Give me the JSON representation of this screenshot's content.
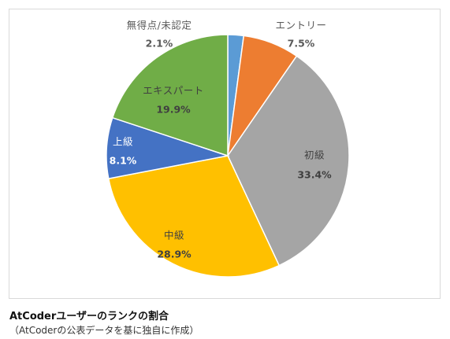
{
  "caption": {
    "title": "AtCoderユーザーのランクの割合",
    "note": "（AtCoderの公表データを基に独自に作成）"
  },
  "chart_data": {
    "type": "pie",
    "title": "",
    "categories": [
      "無得点/未認定",
      "エントリー",
      "初級",
      "中級",
      "上級",
      "エキスパート"
    ],
    "values": [
      2.1,
      7.5,
      33.4,
      28.9,
      8.1,
      19.9
    ],
    "value_labels": [
      "2.1%",
      "7.5%",
      "33.4%",
      "28.9%",
      "8.1%",
      "19.9%"
    ],
    "colors": [
      "#5B9BD5",
      "#ED7D31",
      "#A5A5A5",
      "#FFC000",
      "#4472C4",
      "#70AD47"
    ],
    "label_colors": [
      "#595959",
      "#595959",
      "#404040",
      "#404040",
      "#ffffff",
      "#404040"
    ],
    "start_angle": "12 o'clock",
    "direction": "clockwise",
    "legend": "none"
  }
}
